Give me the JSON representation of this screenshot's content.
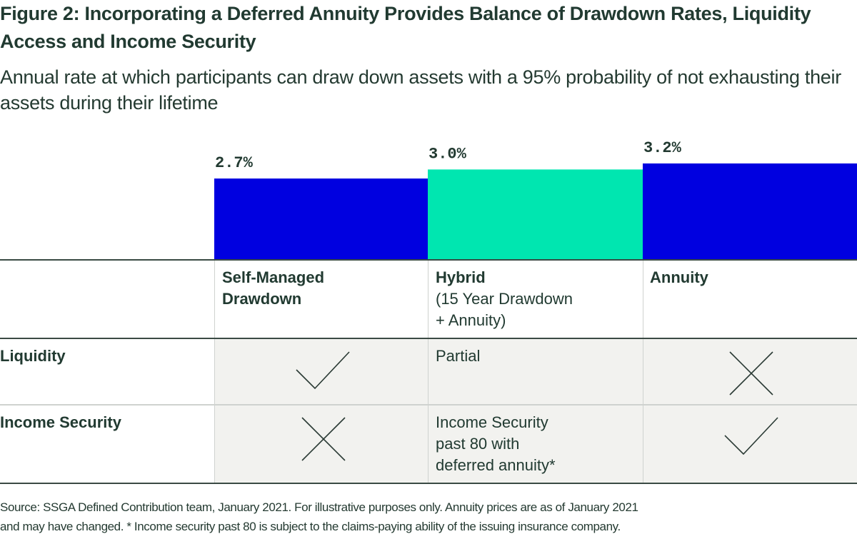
{
  "header": {
    "title": "Figure 2: Incorporating a Deferred Annuity Provides Balance of Drawdown Rates, Liquidity Access and Income Security",
    "subtitle": "Annual rate at which participants can draw down assets with a 95% probability of not exhausting their assets during their lifetime"
  },
  "chart_data": {
    "type": "bar",
    "title": "Annual rate at which participants can draw down assets with a 95% probability of not exhausting their assets during their lifetime",
    "categories": [
      "Self-Managed Drawdown",
      "Hybrid (15 Year Drawdown + Annuity)",
      "Annuity"
    ],
    "values": [
      2.7,
      3.0,
      3.2
    ],
    "value_labels": [
      "2.7%",
      "3.0%",
      "3.2%"
    ],
    "colors": [
      "#0000e0",
      "#00e6b0",
      "#0000e0"
    ],
    "xlabel": "",
    "ylabel": "",
    "unit": "%",
    "grid": false
  },
  "table": {
    "columns": [
      {
        "title": "Self-Managed",
        "title2": "Drawdown",
        "subtitle": ""
      },
      {
        "title": "Hybrid",
        "subtitle1": "(15 Year Drawdown",
        "subtitle2": "+ Annuity)"
      },
      {
        "title": "Annuity"
      }
    ],
    "rows": [
      {
        "label": "Liquidity",
        "cells": [
          {
            "type": "check"
          },
          {
            "type": "text",
            "lines": [
              "Partial"
            ]
          },
          {
            "type": "cross"
          }
        ]
      },
      {
        "label": "Income Security",
        "cells": [
          {
            "type": "cross"
          },
          {
            "type": "text",
            "lines": [
              "Income Security",
              "past 80 with",
              "deferred annuity*"
            ]
          },
          {
            "type": "check"
          }
        ]
      }
    ]
  },
  "colors": {
    "text": "#213a31",
    "shade": "#f2f2ef",
    "blue": "#0000e0",
    "teal": "#00e6b0"
  },
  "footer": {
    "source_line1": "Source: SSGA Defined Contribution team, January 2021. For illustrative purposes only. Annuity prices are as of January 2021",
    "source_line2": "and may have changed. * Income security past 80 is subject to the claims-paying ability of the issuing insurance company."
  }
}
